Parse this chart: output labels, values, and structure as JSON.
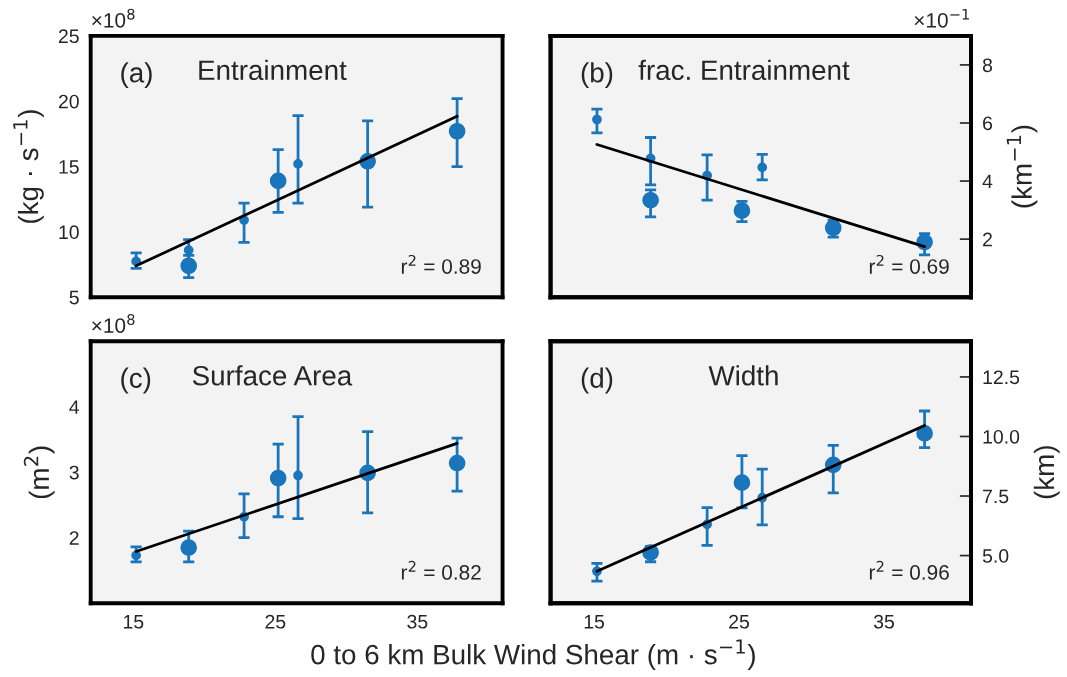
{
  "chart_data": [
    {
      "type": "scatter",
      "title": "Entrainment",
      "ylabel": "(kg · s$^{−1}$)",
      "annotations": [
        "(a)",
        "r$^{2}$ = 0.89",
        "×10$^{8}$"
      ],
      "xlim": [
        12,
        41
      ],
      "xticks": [
        15,
        25,
        35
      ],
      "ylim": [
        5,
        25
      ],
      "yticks": [
        5,
        10,
        15,
        20,
        25
      ],
      "tick_labels": "y",
      "grid": false,
      "series": [
        {
          "marker": "circle",
          "color": "#1a75bb",
          "x": [
            15.2,
            18.9,
            22.8,
            26.6
          ],
          "values": [
            7.74,
            8.6,
            10.9,
            15.2
          ],
          "errors": [
            [
              7.2,
              8.4
            ],
            [
              7.8,
              9.4
            ],
            [
              9.2,
              12.2
            ],
            [
              12.2,
              18.9
            ]
          ]
        },
        {
          "marker": "circle",
          "color": "#1a75bb",
          "x": [
            18.9,
            25.2,
            31.5,
            37.8
          ],
          "values": [
            7.4,
            13.9,
            15.4,
            17.7
          ],
          "errors": [
            [
              6.5,
              8.2
            ],
            [
              11.5,
              16.3
            ],
            [
              11.9,
              18.5
            ],
            [
              15.0,
              20.2
            ]
          ]
        },
        {
          "type": "line",
          "color": "#000000",
          "x": [
            15.2,
            37.8
          ],
          "values": [
            7.4,
            18.85
          ]
        }
      ]
    },
    {
      "type": "scatter",
      "title": "frac. Entrainment",
      "y2label": "(km$^{−1}$)",
      "annotations": [
        "(b)",
        "r$^{2}$ = 0.69",
        "×10$^{−1}$"
      ],
      "xlim": [
        12,
        41
      ],
      "xticks": [
        15,
        25,
        35
      ],
      "y2lim": [
        0,
        9
      ],
      "y2ticks": [
        2,
        4,
        6,
        8
      ],
      "tick_labels": "y",
      "grid": false,
      "series": [
        {
          "marker": "circle",
          "axis": "y2",
          "color": "#1a75bb",
          "x": [
            15.2,
            18.9,
            22.8,
            26.6
          ],
          "values": [
            6.12,
            4.78,
            4.19,
            4.47
          ],
          "errors": [
            [
              5.66,
              6.48
            ],
            [
              3.87,
              5.5
            ],
            [
              3.34,
              4.9
            ],
            [
              4.04,
              4.92
            ]
          ]
        },
        {
          "marker": "circle",
          "axis": "y2",
          "color": "#1a75bb",
          "x": [
            18.9,
            25.2,
            31.5,
            37.8
          ],
          "values": [
            3.34,
            2.98,
            2.39,
            1.9
          ],
          "errors": [
            [
              2.77,
              3.7
            ],
            [
              2.6,
              3.3
            ],
            [
              2.07,
              2.65
            ],
            [
              1.46,
              2.19
            ]
          ]
        },
        {
          "axis": "y2",
          "type": "line",
          "color": "#000000",
          "x": [
            15.2,
            37.8
          ],
          "values": [
            5.26,
            1.74
          ]
        }
      ]
    },
    {
      "type": "scatter",
      "title": "Surface Area",
      "ylabel": "(m$^{2}$)",
      "xlabel": "0 to 6 km Bulk Wind Shear (m · s$^{−1}$)",
      "annotations": [
        "(c)",
        "r$^{2}$ = 0.82",
        "×10$^{8}$"
      ],
      "xlim": [
        12,
        41
      ],
      "xticks": [
        15,
        25,
        35
      ],
      "ylim": [
        1,
        5
      ],
      "yticks": [
        2,
        3,
        4
      ],
      "grid": false,
      "series": [
        {
          "marker": "circle",
          "color": "#1a75bb",
          "x": [
            15.2,
            18.9,
            22.8,
            26.6
          ],
          "values": [
            1.73,
            null,
            2.32,
            2.95
          ],
          "errors": [
            [
              1.63,
              1.86
            ],
            null,
            [
              2.0,
              2.67
            ],
            [
              2.29,
              3.85
            ]
          ]
        },
        {
          "marker": "circle",
          "color": "#1a75bb",
          "x": [
            18.9,
            25.2,
            31.5,
            37.8
          ],
          "values": [
            1.85,
            2.91,
            2.99,
            3.14
          ],
          "errors": [
            [
              1.63,
              2.1
            ],
            [
              2.32,
              3.43
            ],
            [
              2.38,
              3.62
            ],
            [
              2.71,
              3.52
            ]
          ]
        },
        {
          "type": "line",
          "color": "#000000",
          "x": [
            15.2,
            37.8
          ],
          "values": [
            1.79,
            3.44
          ]
        }
      ]
    },
    {
      "type": "scatter",
      "title": "Width",
      "y2label": "(km)",
      "annotations": [
        "(d)",
        "r$^{2}$ = 0.96"
      ],
      "xlim": [
        12,
        41
      ],
      "xticks": [
        15,
        25,
        35
      ],
      "y2lim": [
        3,
        14
      ],
      "y2ticks": [
        {
          "value": 5,
          "label": "5.0"
        },
        7.5,
        {
          "value": 10,
          "label": "10.0"
        },
        12.5
      ],
      "grid": false,
      "series": [
        {
          "marker": "circle",
          "axis": "y2",
          "color": "#1a75bb",
          "x": [
            15.2,
            18.9,
            22.8,
            26.6
          ],
          "values": [
            4.34,
            null,
            6.31,
            7.43
          ],
          "errors": [
            [
              3.93,
              4.67
            ],
            null,
            [
              5.43,
              7.01
            ],
            [
              6.29,
              8.63
            ]
          ]
        },
        {
          "marker": "circle",
          "axis": "y2",
          "color": "#1a75bb",
          "x": [
            18.9,
            25.2,
            31.5,
            37.8
          ],
          "values": [
            5.13,
            8.06,
            8.81,
            10.13
          ],
          "errors": [
            [
              4.74,
              5.39
            ],
            [
              7.0,
              9.2
            ],
            [
              7.63,
              9.63
            ],
            [
              9.53,
              11.07
            ]
          ]
        },
        {
          "axis": "y2",
          "type": "line",
          "color": "#000000",
          "x": [
            15.2,
            37.8
          ],
          "values": [
            4.34,
            10.46
          ]
        }
      ]
    }
  ]
}
